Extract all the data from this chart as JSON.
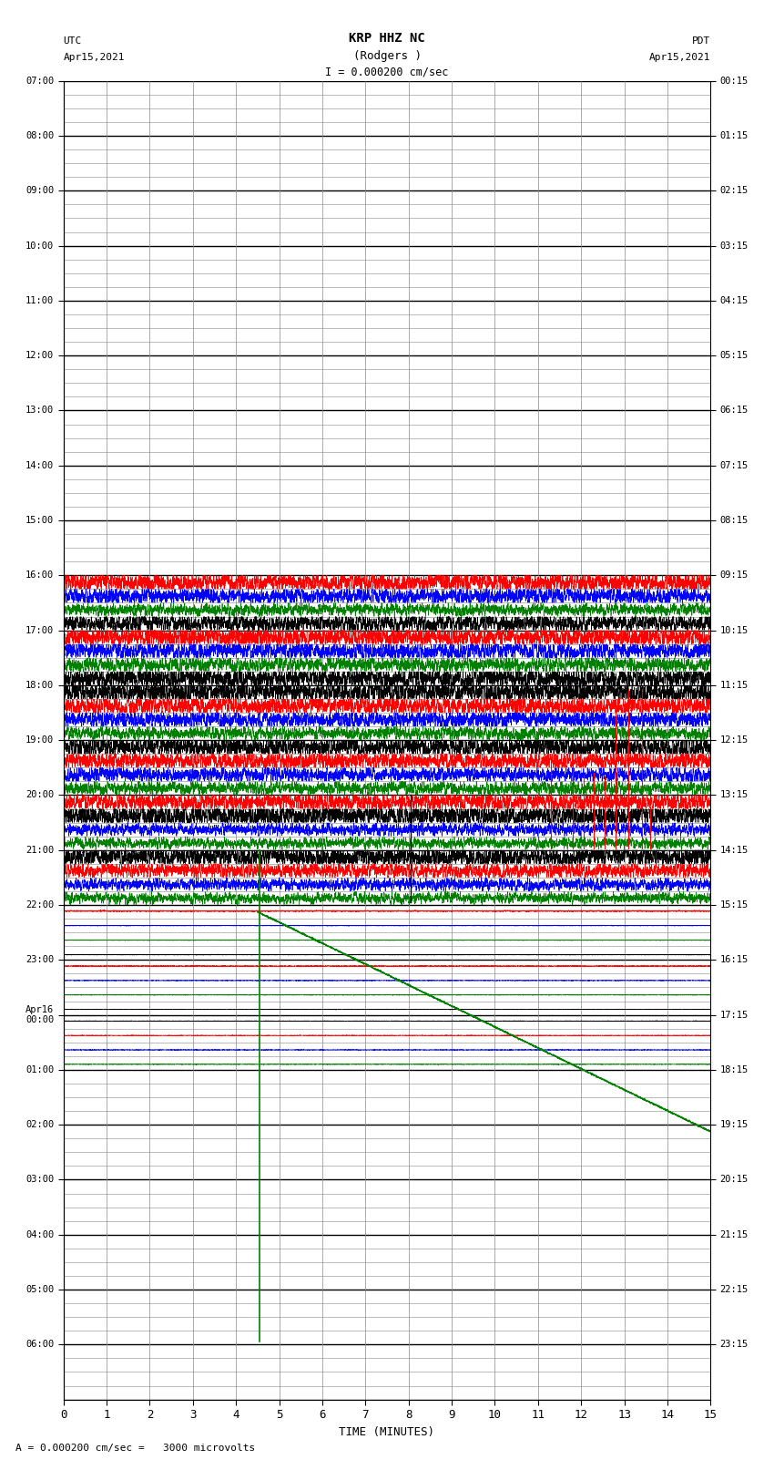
{
  "title_line1": "KRP HHZ NC",
  "title_line2": "(Rodgers )",
  "title_line3": "I = 0.000200 cm/sec",
  "left_label_top": "UTC",
  "left_label_date": "Apr15,2021",
  "right_label_top": "PDT",
  "right_label_date": "Apr15,2021",
  "xlabel": "TIME (MINUTES)",
  "footer": "A = 0.000200 cm/sec =   3000 microvolts",
  "xlim": [
    0,
    15
  ],
  "xticks": [
    0,
    1,
    2,
    3,
    4,
    5,
    6,
    7,
    8,
    9,
    10,
    11,
    12,
    13,
    14,
    15
  ],
  "utc_times_left": [
    "07:00",
    "08:00",
    "09:00",
    "10:00",
    "11:00",
    "12:00",
    "13:00",
    "14:00",
    "15:00",
    "16:00",
    "17:00",
    "18:00",
    "19:00",
    "20:00",
    "21:00",
    "22:00",
    "23:00",
    "Apr16\n00:00",
    "01:00",
    "02:00",
    "03:00",
    "04:00",
    "05:00",
    "06:00"
  ],
  "pdt_times_right": [
    "00:15",
    "01:15",
    "02:15",
    "03:15",
    "04:15",
    "05:15",
    "06:15",
    "07:15",
    "08:15",
    "09:15",
    "10:15",
    "11:15",
    "12:15",
    "13:15",
    "14:15",
    "15:15",
    "16:15",
    "17:15",
    "18:15",
    "19:15",
    "20:15",
    "21:15",
    "22:15",
    "23:15"
  ],
  "n_rows": 24,
  "sub_rows": 4,
  "background_color": "#ffffff",
  "major_grid_color": "#000000",
  "minor_grid_color": "#888888",
  "vert_grid_color": "#888888"
}
